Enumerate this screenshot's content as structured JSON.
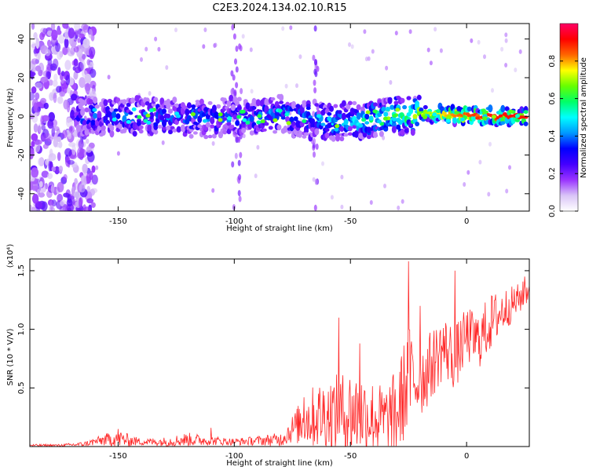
{
  "title": "C2E3.2024.134.02.10.R15",
  "chart_data": [
    {
      "type": "heatmap",
      "title": "C2E3.2024.134.02.10.R15",
      "xlabel": "Height of straight line (km)",
      "ylabel": "Frequency (Hz)",
      "xlim": [
        -188,
        27
      ],
      "ylim": [
        -49,
        48
      ],
      "xticks": [
        -150,
        -100,
        -50,
        0
      ],
      "yticks": [
        -40,
        -20,
        0,
        20,
        40
      ],
      "colorbar": {
        "label": "Normalized spectral amplitude",
        "range": [
          0,
          1
        ],
        "ticks": [
          0.0,
          0.2,
          0.4,
          0.6,
          0.8
        ],
        "colormap": [
          "#ffffff",
          "#d9c4f7",
          "#9933ff",
          "#4400ff",
          "#0000ff",
          "#0099ff",
          "#00ffff",
          "#00ff66",
          "#66ff00",
          "#ffff00",
          "#ff6600",
          "#ff0000",
          "#ff0066"
        ]
      },
      "ridge": {
        "x": [
          -165,
          -150,
          -130,
          -110,
          -95,
          -80,
          -65,
          -55,
          -45,
          -35,
          -25,
          -15,
          -5,
          5,
          15,
          27
        ],
        "y": [
          0,
          0,
          0,
          -1,
          0,
          1,
          -2,
          -3,
          -2,
          0,
          1,
          1,
          1,
          0,
          0,
          0
        ],
        "amp": [
          0.3,
          0.32,
          0.33,
          0.33,
          0.35,
          0.36,
          0.38,
          0.42,
          0.47,
          0.55,
          0.62,
          0.72,
          0.82,
          0.88,
          0.9,
          0.9
        ]
      },
      "noise_region_x": [
        -188,
        -160
      ],
      "grid": false
    },
    {
      "type": "line",
      "xlabel": "Height of straight line (km)",
      "ylabel": "SNR (10 * V/V)",
      "y_multiplier": "(x10⁴)",
      "xlim": [
        -188,
        27
      ],
      "ylim": [
        0,
        1.6
      ],
      "xticks": [
        -150,
        -100,
        -50,
        0
      ],
      "yticks": [
        0.5,
        1.0,
        1.5
      ],
      "series": [
        {
          "color": "#ff0000",
          "x": [
            -188,
            -175,
            -165,
            -158,
            -150,
            -145,
            -140,
            -130,
            -125,
            -120,
            -110,
            -100,
            -90,
            -80,
            -75,
            -70,
            -65,
            -60,
            -55,
            -50,
            -45,
            -40,
            -35,
            -30,
            -25,
            -20,
            -15,
            -10,
            -5,
            0,
            5,
            10,
            15,
            20,
            25,
            27
          ],
          "baseline": [
            0.01,
            0.01,
            0.02,
            0.05,
            0.07,
            0.05,
            0.04,
            0.04,
            0.05,
            0.06,
            0.05,
            0.04,
            0.05,
            0.06,
            0.15,
            0.22,
            0.26,
            0.28,
            0.27,
            0.29,
            0.28,
            0.25,
            0.22,
            0.27,
            0.6,
            0.55,
            0.7,
            0.85,
            0.75,
            0.95,
            0.9,
            1.05,
            1.15,
            1.22,
            1.3,
            1.35
          ],
          "amp": [
            0.01,
            0.01,
            0.02,
            0.04,
            0.08,
            0.05,
            0.03,
            0.04,
            0.05,
            0.06,
            0.04,
            0.03,
            0.04,
            0.06,
            0.12,
            0.22,
            0.28,
            0.32,
            0.35,
            0.38,
            0.36,
            0.32,
            0.3,
            0.4,
            0.45,
            0.32,
            0.3,
            0.28,
            0.28,
            0.24,
            0.25,
            0.25,
            0.2,
            0.15,
            0.12,
            0.1
          ],
          "peaks": [
            {
              "x": -150,
              "y": 0.15
            },
            {
              "x": -110,
              "y": 0.16
            },
            {
              "x": -70,
              "y": 0.42
            },
            {
              "x": -55,
              "y": 1.1
            },
            {
              "x": -46,
              "y": 0.88
            },
            {
              "x": -25,
              "y": 1.58
            },
            {
              "x": -20,
              "y": 1.2
            },
            {
              "x": -5,
              "y": 1.5
            },
            {
              "x": 25,
              "y": 1.45
            }
          ]
        }
      ]
    }
  ]
}
